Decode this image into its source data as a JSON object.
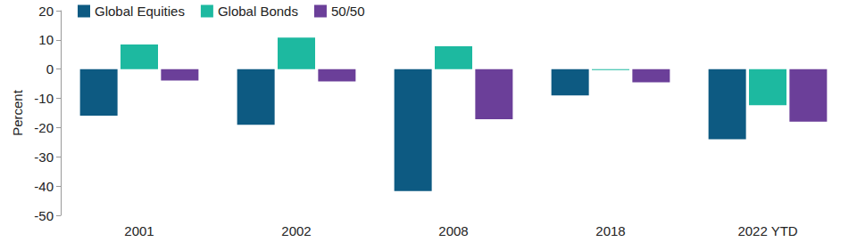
{
  "chart_data": {
    "type": "bar",
    "y_label": "Percent",
    "categories": [
      "2001",
      "2002",
      "2008",
      "2018",
      "2022 YTD"
    ],
    "series": [
      {
        "name": "Global Equities",
        "color": "#0d5a82",
        "values": [
          -15.9,
          -19.0,
          -41.7,
          -9.0,
          -24.0
        ]
      },
      {
        "name": "Global Bonds",
        "color": "#1db9a0",
        "values": [
          8.4,
          10.8,
          7.8,
          -0.3,
          -12.3
        ]
      },
      {
        "name": "50/50",
        "color": "#6b3f99",
        "values": [
          -3.9,
          -4.2,
          -17.1,
          -4.5,
          -18.0
        ]
      }
    ],
    "ylim": [
      -50,
      20
    ],
    "yticks": [
      -50,
      -40,
      -30,
      -20,
      -10,
      0,
      10,
      20
    ],
    "grid": false,
    "legend": "top-left"
  }
}
